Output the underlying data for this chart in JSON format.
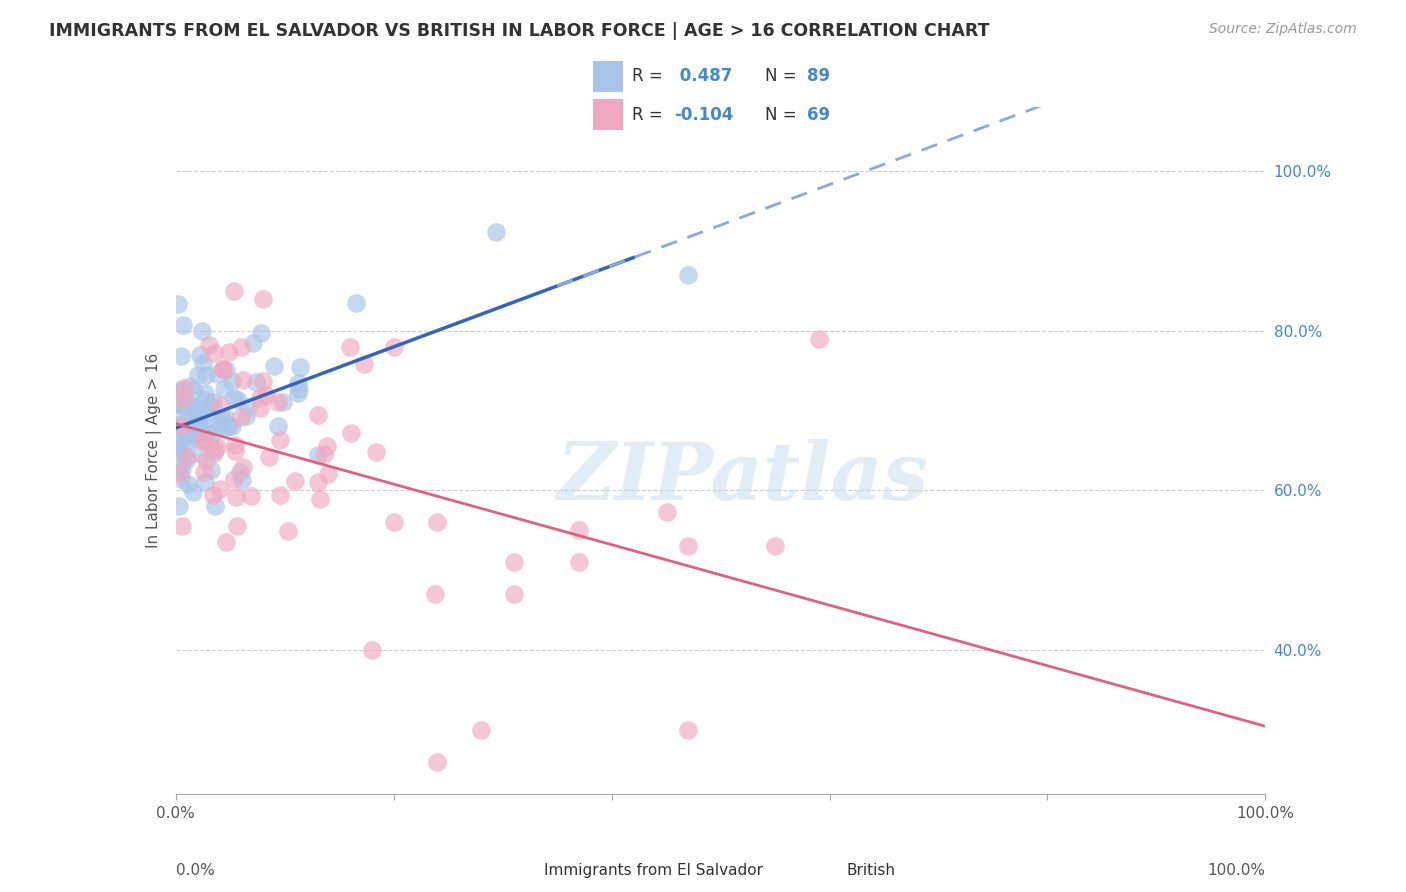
{
  "title": "IMMIGRANTS FROM EL SALVADOR VS BRITISH IN LABOR FORCE | AGE > 16 CORRELATION CHART",
  "source": "Source: ZipAtlas.com",
  "ylabel": "In Labor Force | Age > 16",
  "xlim": [
    0.0,
    1.0
  ],
  "ylim": [
    0.22,
    1.08
  ],
  "xtick_vals": [
    0.0,
    0.2,
    0.4,
    0.6,
    0.8,
    1.0
  ],
  "xticklabels": [
    "0.0%",
    "",
    "",
    "",
    "",
    "100.0%"
  ],
  "ytick_vals": [
    0.4,
    0.6,
    0.8,
    1.0
  ],
  "yticklabels_right": [
    "40.0%",
    "60.0%",
    "80.0%",
    "100.0%"
  ],
  "blue_color": "#a8c4e8",
  "pink_color": "#f0a8c0",
  "trendline_blue_solid": "#3366bb",
  "trendline_blue_dash": "#88aadd",
  "trendline_pink": "#e06080",
  "watermark_text": "ZIPatlas",
  "watermark_color": "#c8ddf0",
  "legend_R_blue": " 0.487",
  "legend_N_blue": "89",
  "legend_R_pink": "-0.104",
  "legend_N_pink": "69",
  "blue_N": 89,
  "pink_N": 69,
  "blue_seed": 15,
  "pink_seed": 25
}
